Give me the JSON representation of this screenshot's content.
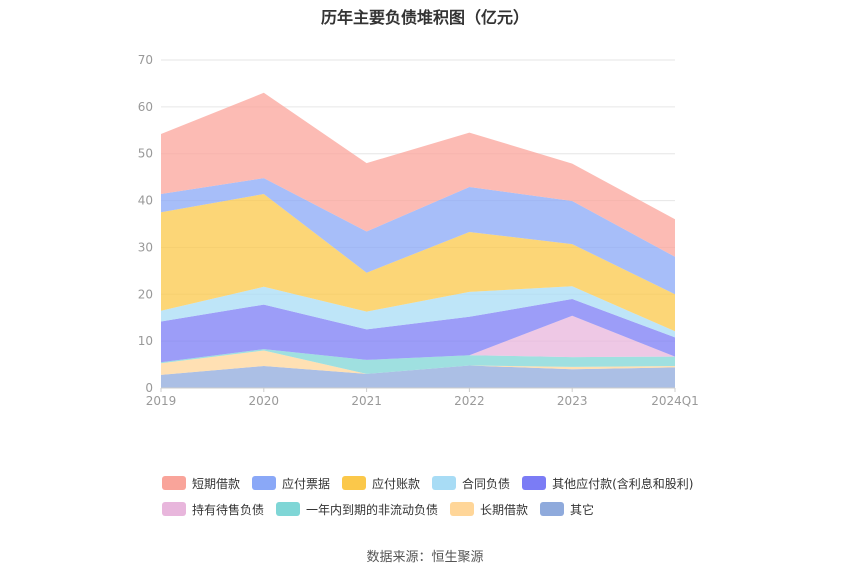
{
  "chart_data": {
    "type": "area",
    "title": "历年主要负债堆积图（亿元）",
    "source": "数据来源：恒生聚源",
    "categories": [
      "2019",
      "2020",
      "2021",
      "2022",
      "2023",
      "2024Q1"
    ],
    "ylim": [
      0,
      70
    ],
    "yticks": [
      "0",
      "10",
      "20",
      "30",
      "40",
      "50",
      "60",
      "70"
    ],
    "grid": true,
    "legend_position": "bottom",
    "series": [
      {
        "name": "其它",
        "color": "#8faadc",
        "values": [
          2.8,
          4.7,
          3.0,
          4.8,
          4.0,
          4.4
        ]
      },
      {
        "name": "长期借款",
        "color": "#ffd699",
        "values": [
          2.5,
          3.3,
          0.0,
          0.0,
          0.5,
          0.3
        ]
      },
      {
        "name": "一年内到期的非流动负债",
        "color": "#7fd6d6",
        "values": [
          0.2,
          0.3,
          3.0,
          2.2,
          2.1,
          2.0
        ]
      },
      {
        "name": "持有待售负债",
        "color": "#e8b6dc",
        "values": [
          0.0,
          0.0,
          0.0,
          0.0,
          8.8,
          0.0
        ]
      },
      {
        "name": "其他应付款(含利息和股利)",
        "color": "#7b7cf5",
        "values": [
          8.7,
          9.5,
          6.5,
          8.2,
          3.6,
          4.1
        ]
      },
      {
        "name": "合同负债",
        "color": "#a8dcf5",
        "values": [
          2.3,
          3.8,
          3.8,
          5.3,
          2.7,
          1.3
        ]
      },
      {
        "name": "应付账款",
        "color": "#fbc84a",
        "values": [
          21.0,
          19.8,
          8.3,
          12.8,
          9.0,
          7.9
        ]
      },
      {
        "name": "应付票据",
        "color": "#8aa8f7",
        "values": [
          3.9,
          3.4,
          8.8,
          9.6,
          9.2,
          8.0
        ]
      },
      {
        "name": "短期借款",
        "color": "#fba49b",
        "values": [
          12.8,
          18.2,
          14.6,
          11.6,
          8.0,
          8.0
        ]
      }
    ]
  },
  "legend": {
    "row1": [
      {
        "name": "短期借款",
        "color": "#f9a49a"
      },
      {
        "name": "应付票据",
        "color": "#8aa8f7"
      },
      {
        "name": "应付账款",
        "color": "#fbc84a"
      },
      {
        "name": "合同负债",
        "color": "#a8dcf5"
      },
      {
        "name": "其他应付款(含利息和股利)",
        "color": "#7b7cf5"
      }
    ],
    "row2": [
      {
        "name": "持有待售负债",
        "color": "#e8b6dc"
      },
      {
        "name": "一年内到期的非流动负债",
        "color": "#7fd6d6"
      },
      {
        "name": "长期借款",
        "color": "#ffd699"
      },
      {
        "name": "其它",
        "color": "#8faadc"
      }
    ]
  }
}
